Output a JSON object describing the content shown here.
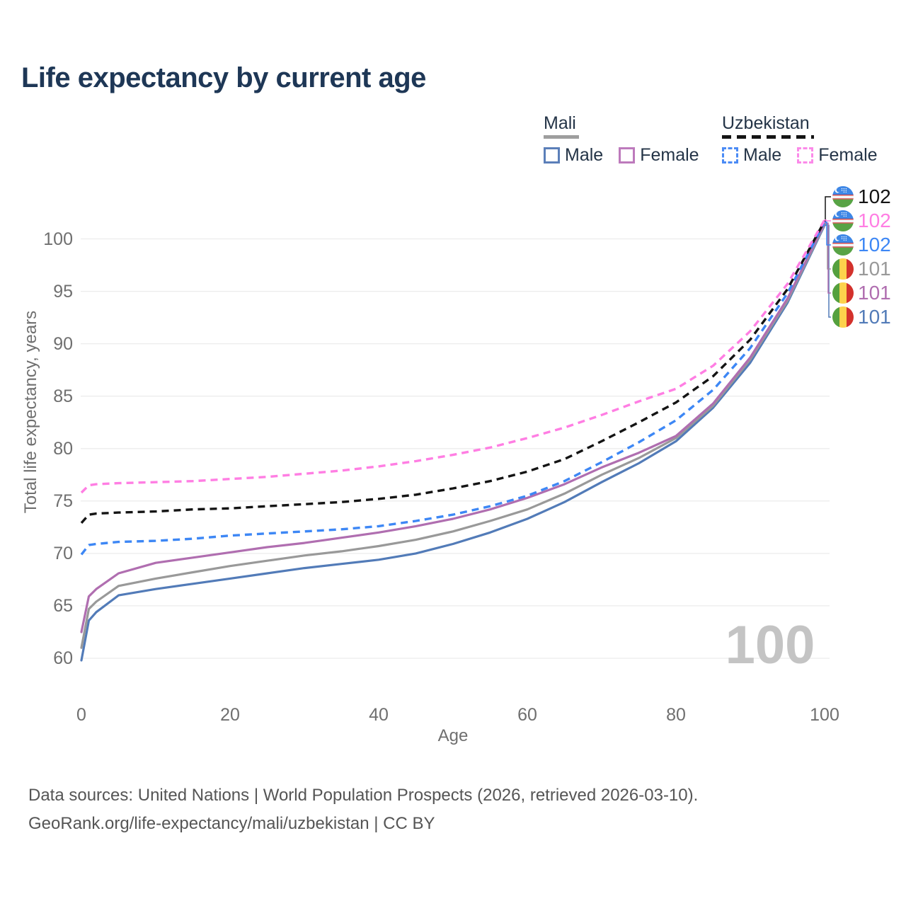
{
  "title": "Life expectancy by current age",
  "legend": {
    "groups": [
      {
        "label": "Mali",
        "line_style": "solid",
        "line_color": "#9e9e9e",
        "underline_width": 50,
        "items": [
          {
            "label": "Male",
            "color": "#5b7fb9",
            "dashed": false
          },
          {
            "label": "Female",
            "color": "#bd7abc",
            "dashed": false
          }
        ]
      },
      {
        "label": "Uzbekistan",
        "line_style": "dashed",
        "line_color": "#141414",
        "underline_width": 130,
        "items": [
          {
            "label": "Male",
            "color": "#4b8bf5",
            "dashed": true
          },
          {
            "label": "Female",
            "color": "#fb8ae9",
            "dashed": true
          }
        ]
      }
    ]
  },
  "chart_data": {
    "type": "line",
    "title": "Life expectancy by current age",
    "xlabel": "Age",
    "ylabel": "Total life expectancy, years",
    "xlim": [
      0,
      100
    ],
    "ylim": [
      58.5,
      103
    ],
    "xticks": [
      0,
      20,
      40,
      60,
      80,
      100
    ],
    "yticks": [
      60,
      65,
      70,
      75,
      80,
      85,
      90,
      95,
      100
    ],
    "grid": "horizontal",
    "legend_position": "top-right",
    "watermark": "100",
    "x": [
      0,
      1,
      2,
      5,
      10,
      15,
      20,
      25,
      30,
      35,
      40,
      45,
      50,
      55,
      60,
      65,
      70,
      75,
      80,
      85,
      90,
      95,
      100
    ],
    "series": [
      {
        "name": "Mali Male",
        "country": "Mali",
        "sex": "Male",
        "color": "#527bb8",
        "dashed": false,
        "flag": "mali",
        "label_row": 5,
        "end_label": "101",
        "values": [
          59.8,
          63.6,
          64.4,
          66.0,
          66.6,
          67.1,
          67.6,
          68.1,
          68.6,
          69.0,
          69.4,
          70.0,
          70.9,
          72.0,
          73.3,
          74.9,
          76.8,
          78.6,
          80.7,
          83.9,
          88.2,
          93.9,
          101.3
        ]
      },
      {
        "name": "Mali Both sexes",
        "country": "Mali",
        "sex": "Both",
        "color": "#999999",
        "dashed": false,
        "flag": "mali",
        "label_row": 3,
        "end_label": "101",
        "values": [
          61.0,
          64.7,
          65.4,
          66.9,
          67.6,
          68.2,
          68.8,
          69.3,
          69.8,
          70.2,
          70.7,
          71.3,
          72.1,
          73.1,
          74.2,
          75.7,
          77.5,
          79.1,
          81.0,
          84.1,
          88.5,
          94.1,
          101.4
        ]
      },
      {
        "name": "Mali Female",
        "country": "Mali",
        "sex": "Female",
        "color": "#b06eb0",
        "dashed": false,
        "flag": "mali",
        "label_row": 4,
        "end_label": "101",
        "values": [
          62.5,
          65.9,
          66.6,
          68.1,
          69.1,
          69.6,
          70.1,
          70.6,
          71.0,
          71.5,
          72.0,
          72.6,
          73.3,
          74.2,
          75.3,
          76.6,
          78.2,
          79.6,
          81.2,
          84.3,
          88.7,
          94.3,
          101.5
        ]
      },
      {
        "name": "Uzbekistan Male",
        "country": "Uzbekistan",
        "sex": "Male",
        "color": "#3d87f5",
        "dashed": true,
        "flag": "uzbekistan",
        "label_row": 2,
        "end_label": "102",
        "values": [
          69.9,
          70.8,
          70.9,
          71.1,
          71.2,
          71.4,
          71.7,
          71.9,
          72.1,
          72.3,
          72.6,
          73.1,
          73.7,
          74.5,
          75.5,
          76.9,
          78.7,
          80.6,
          82.7,
          85.6,
          89.6,
          94.8,
          101.6
        ]
      },
      {
        "name": "Uzbekistan Both sexes",
        "country": "Uzbekistan",
        "sex": "Both",
        "color": "#141414",
        "dashed": true,
        "flag": "uzbekistan",
        "label_row": 0,
        "end_label": "102",
        "values": [
          72.9,
          73.7,
          73.8,
          73.9,
          74.0,
          74.2,
          74.3,
          74.5,
          74.7,
          74.9,
          75.2,
          75.6,
          76.2,
          76.9,
          77.8,
          79.0,
          80.7,
          82.5,
          84.4,
          86.9,
          90.4,
          95.2,
          101.7
        ]
      },
      {
        "name": "Uzbekistan Female",
        "country": "Uzbekistan",
        "sex": "Female",
        "color": "#ff7ee3",
        "dashed": true,
        "flag": "uzbekistan",
        "label_row": 1,
        "end_label": "102",
        "values": [
          75.8,
          76.5,
          76.6,
          76.7,
          76.8,
          76.9,
          77.1,
          77.3,
          77.6,
          77.9,
          78.3,
          78.8,
          79.4,
          80.1,
          81.0,
          82.0,
          83.2,
          84.5,
          85.7,
          87.9,
          91.2,
          95.7,
          101.8
        ]
      }
    ]
  },
  "footer": {
    "line1": "Data sources: United Nations | World Population Prospects (2026, retrieved 2026-03-10).",
    "line2": "GeoRank.org/life-expectancy/mali/uzbekistan | CC BY"
  }
}
